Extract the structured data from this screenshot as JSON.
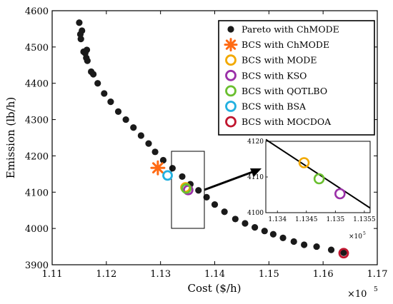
{
  "chart_data": {
    "type": "scatter",
    "xlabel": "Cost ($/h)",
    "ylabel": "Emission (lb/h)",
    "x_multiplier_label": "×10",
    "x_multiplier_exp": "5",
    "xlim": [
      111000,
      117000
    ],
    "ylim": [
      3900,
      4600
    ],
    "xticks": [
      111000,
      112000,
      113000,
      114000,
      115000,
      116000,
      117000
    ],
    "xtick_labels": [
      "1.11",
      "1.12",
      "1.13",
      "1.14",
      "1.15",
      "1.16",
      "1.17"
    ],
    "yticks": [
      3900,
      4000,
      4100,
      4200,
      4300,
      4400,
      4500,
      4600
    ],
    "ytick_labels": [
      "3900",
      "4000",
      "4100",
      "4200",
      "4300",
      "4400",
      "4500",
      "4600"
    ],
    "legend_position": "top-right",
    "pareto": {
      "name": "Pareto with ChMODE",
      "color": "#1a1a1a",
      "points": [
        [
          111500,
          4567
        ],
        [
          111550,
          4545
        ],
        [
          111520,
          4535
        ],
        [
          111530,
          4522
        ],
        [
          111580,
          4487
        ],
        [
          111640,
          4492
        ],
        [
          111610,
          4483
        ],
        [
          111630,
          4470
        ],
        [
          111650,
          4462
        ],
        [
          111720,
          4432
        ],
        [
          111760,
          4425
        ],
        [
          111840,
          4400
        ],
        [
          111960,
          4372
        ],
        [
          112080,
          4349
        ],
        [
          112220,
          4322
        ],
        [
          112360,
          4300
        ],
        [
          112500,
          4278
        ],
        [
          112640,
          4256
        ],
        [
          112780,
          4234
        ],
        [
          112900,
          4211
        ],
        [
          113050,
          4188
        ],
        [
          113220,
          4166
        ],
        [
          113400,
          4143
        ],
        [
          113550,
          4122
        ],
        [
          113700,
          4105
        ],
        [
          113850,
          4086
        ],
        [
          114000,
          4066
        ],
        [
          114180,
          4046
        ],
        [
          114380,
          4026
        ],
        [
          114560,
          4014
        ],
        [
          114740,
          4003
        ],
        [
          114920,
          3993
        ],
        [
          115080,
          3984
        ],
        [
          115260,
          3974
        ],
        [
          115460,
          3964
        ],
        [
          115650,
          3955
        ],
        [
          115880,
          3950
        ],
        [
          116150,
          3941
        ],
        [
          116380,
          3933
        ]
      ]
    },
    "bcs": [
      {
        "name": "BCS with ChMODE",
        "x": 112950,
        "y": 4167,
        "marker": "asterisk",
        "color": "#ff6a13"
      },
      {
        "name": "BCS with MODE",
        "x": 113460,
        "y": 4113,
        "marker": "circle",
        "color": "#f2a900"
      },
      {
        "name": "BCS with KSO",
        "x": 113510,
        "y": 4106,
        "marker": "circle",
        "color": "#9b30a8"
      },
      {
        "name": "BCS with QOTLBO",
        "x": 113475,
        "y": 4110,
        "marker": "circle",
        "color": "#6abf2f"
      },
      {
        "name": "BCS with BSA",
        "x": 113130,
        "y": 4146,
        "marker": "circle",
        "color": "#22b0e0"
      },
      {
        "name": "BCS with MOCDOA",
        "x": 116380,
        "y": 3932,
        "marker": "circle",
        "color": "#c0162f"
      }
    ],
    "inset": {
      "xlim": [
        113380,
        113560
      ],
      "ylim": [
        4100,
        4120
      ],
      "xticks": [
        113400,
        113450,
        113500,
        113550
      ],
      "xtick_labels": [
        "1.134",
        "1.1345",
        "1.135",
        "1.1355"
      ],
      "yticks": [
        4100,
        4110,
        4120
      ],
      "ytick_labels": [
        "4100",
        "4110",
        "4120"
      ],
      "x_multiplier_label": "×10",
      "x_multiplier_exp": "5",
      "line": [
        [
          113380,
          4120.5
        ],
        [
          113560,
          4101.3
        ]
      ],
      "points": [
        {
          "x": 113446,
          "y": 4114,
          "color": "#f2a900"
        },
        {
          "x": 113472,
          "y": 4109.5,
          "color": "#6abf2f"
        },
        {
          "x": 113508,
          "y": 4105.3,
          "color": "#9b30a8"
        }
      ]
    }
  }
}
